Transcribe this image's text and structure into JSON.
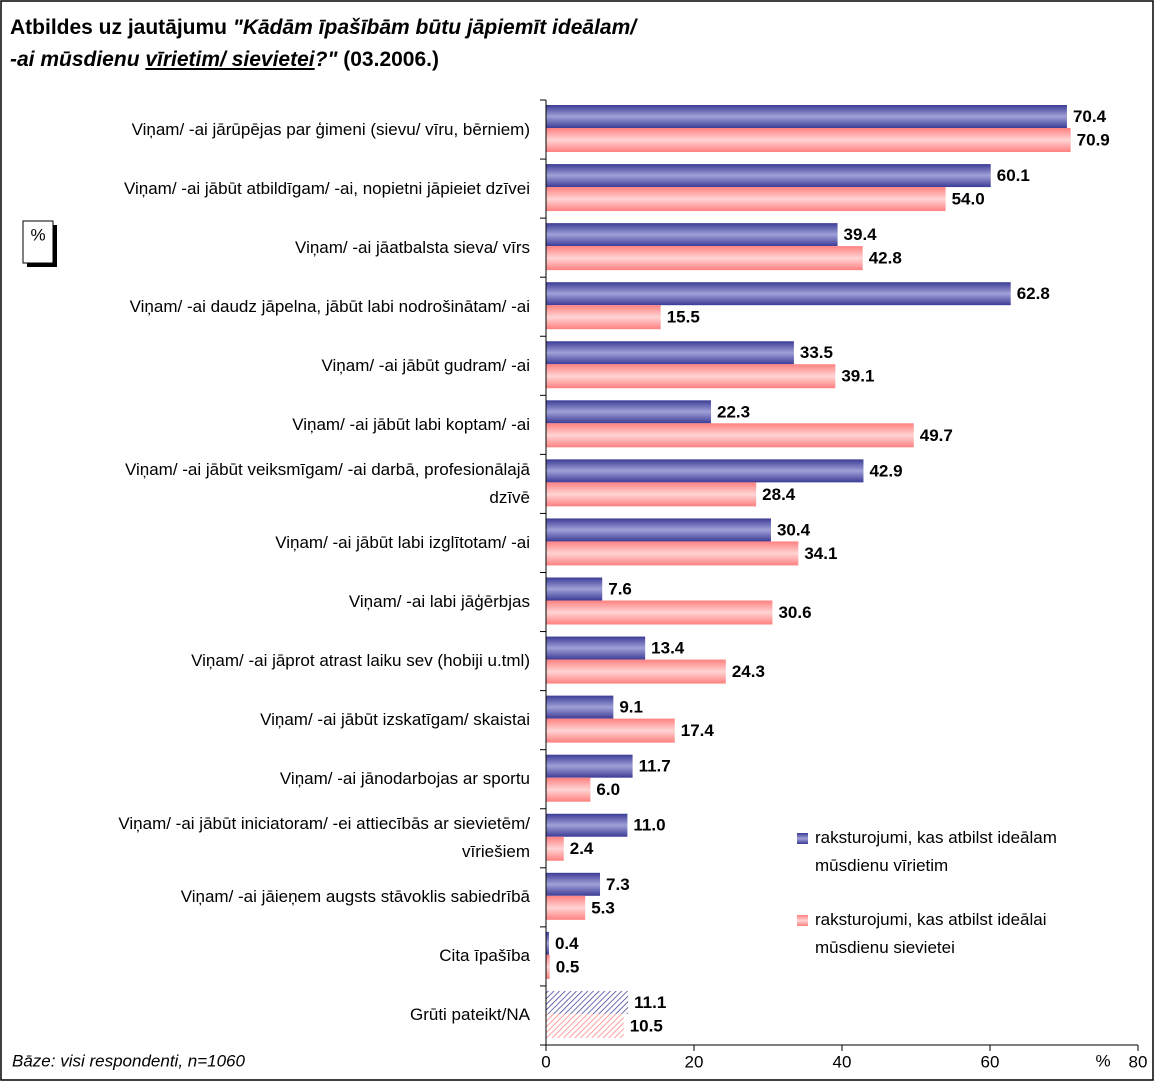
{
  "chart_data": {
    "type": "hbar",
    "title_parts": [
      "Atbildes uz jautājumu ",
      "\"Kādām īpašībām būtu jāpiemīt ideālam/",
      "-ai mūsdienu ",
      "vīrietim/ sievietei",
      "?\"",
      " (03.2006.)"
    ],
    "unit_box": "%",
    "xlabel": "%",
    "footnote": "Bāze: visi respondenti, n=1060",
    "categories": [
      "Viņam/ -ai jārūpējas par ģimeni (sievu/ vīru, bērniem)",
      "Viņam/ -ai jābūt atbildīgam/ -ai, nopietni jāpieiet dzīvei",
      "Viņam/ -ai jāatbalsta sieva/ vīrs",
      "Viņam/ -ai daudz jāpelna, jābūt labi nodrošinātam/ -ai",
      "Viņam/ -ai jābūt gudram/ -ai",
      "Viņam/ -ai jābūt labi koptam/ -ai",
      "Viņam/ -ai jābūt veiksmīgam/ -ai darbā, profesionālajā\ndzīvē",
      "Viņam/ -ai jābūt labi izglītotam/ -ai",
      "Viņam/ -ai labi jāģērbjas",
      "Viņam/ -ai jāprot atrast laiku sev (hobiji u.tml)",
      "Viņam/ -ai jābūt izskatīgam/ skaistai",
      "Viņam/ -ai jānodarbojas ar sportu",
      "Viņam/ -ai jābūt iniciatoram/ -ei attiecībās ar sievietēm/\nvīriešiem",
      "Viņam/ -ai jāieņem augsts stāvoklis sabiedrībā",
      "Cita īpašība",
      "Grūti pateikt/NA"
    ],
    "series": [
      {
        "name": "raksturojumi, kas atbilst ideālam\nmūsdienu vīrietim",
        "color": "#3c3c96",
        "values": [
          70.4,
          60.1,
          39.4,
          62.8,
          33.5,
          22.3,
          42.9,
          30.4,
          7.6,
          13.4,
          9.1,
          11.7,
          11.0,
          7.3,
          0.4,
          11.1
        ],
        "value_labels": [
          "70.4",
          "60.1",
          "39.4",
          "62.8",
          "33.5",
          "22.3",
          "42.9",
          "30.4",
          "7.6",
          "13.4",
          "9.1",
          "11.7",
          "11.0",
          "7.3",
          "0.4",
          "11.1"
        ]
      },
      {
        "name": "raksturojumi, kas atbilst ideālai\nmūsdienu sievietei",
        "color": "#ff8080",
        "values": [
          70.9,
          54.0,
          42.8,
          15.5,
          39.1,
          49.7,
          28.4,
          34.1,
          30.6,
          24.3,
          17.4,
          6.0,
          2.4,
          5.3,
          0.5,
          10.5
        ],
        "value_labels": [
          "70.9",
          "54.0",
          "42.8",
          "15.5",
          "39.1",
          "49.7",
          "28.4",
          "34.1",
          "30.6",
          "24.3",
          "17.4",
          "6.0",
          "2.4",
          "5.3",
          "0.5",
          "10.5"
        ]
      }
    ],
    "hatched_category": 15,
    "xlim": [
      0,
      80
    ],
    "xticks": [
      0,
      20,
      40,
      60,
      80
    ]
  }
}
